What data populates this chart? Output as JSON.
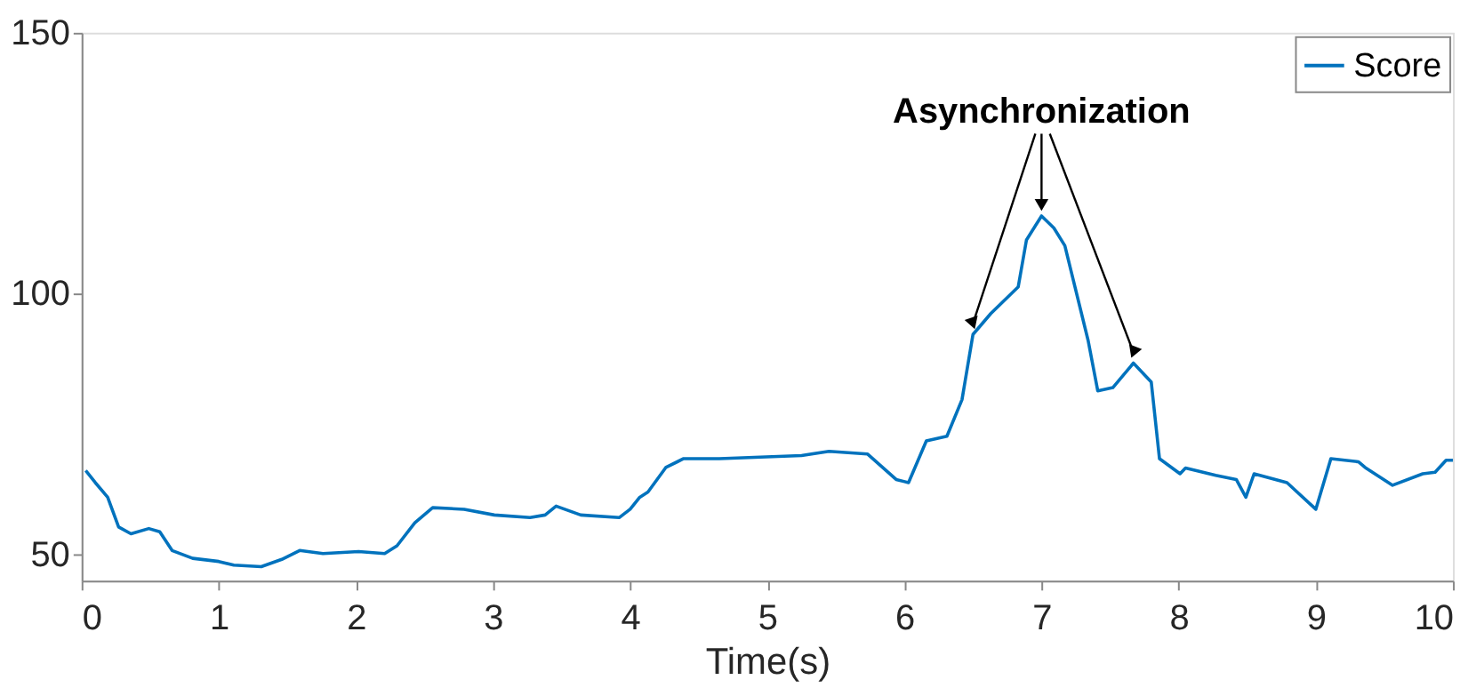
{
  "chart_data": {
    "type": "line",
    "xlabel": "Time(s)",
    "xlim": [
      0,
      10
    ],
    "xticks": [
      0,
      1,
      2,
      3,
      4,
      5,
      6,
      7,
      8,
      9,
      10
    ],
    "ylim": [
      45,
      150
    ],
    "yticks": [
      50,
      100,
      150
    ],
    "grid": false,
    "legend": "top right",
    "marker": "none",
    "line_style": "solid",
    "annotations": [
      {
        "text": "Asynchronization",
        "x": 7.0,
        "y": 114.9
      }
    ],
    "series": [
      {
        "name": "Score",
        "color": "#0072bd",
        "x": [
          0.03,
          0.1,
          0.19,
          0.27,
          0.36,
          0.49,
          0.57,
          0.66,
          0.81,
          1.0,
          1.11,
          1.31,
          1.46,
          1.59,
          1.76,
          2.02,
          2.21,
          2.3,
          2.43,
          2.56,
          2.79,
          3.01,
          3.27,
          3.38,
          3.46,
          3.64,
          3.92,
          4.0,
          4.07,
          4.13,
          4.26,
          4.39,
          4.65,
          5.25,
          5.45,
          5.73,
          5.94,
          6.03,
          6.16,
          6.31,
          6.42,
          6.5,
          6.63,
          6.83,
          6.89,
          7.0,
          7.09,
          7.17,
          7.34,
          7.41,
          7.52,
          7.67,
          7.8,
          7.86,
          8.01,
          8.05,
          8.27,
          8.42,
          8.49,
          8.55,
          8.79,
          9.0,
          9.11,
          9.31,
          9.36,
          9.56,
          9.78,
          9.87,
          9.95,
          10.0
        ],
        "values": [
          66.1,
          63.8,
          61,
          55.3,
          54,
          55,
          54.4,
          50.8,
          49.3,
          48.7,
          48,
          47.7,
          49.1,
          50.8,
          50.2,
          50.6,
          50.2,
          51.7,
          56.1,
          59,
          58.7,
          57.6,
          57.1,
          57.6,
          59.3,
          57.6,
          57.1,
          58.7,
          61,
          62,
          66.7,
          68.4,
          68.4,
          69,
          69.8,
          69.3,
          64.4,
          63.8,
          71.8,
          72.7,
          79.7,
          92.2,
          96.2,
          101.3,
          110.3,
          114.9,
          112.6,
          109.2,
          91,
          81.4,
          82,
          86.7,
          83.1,
          68.4,
          65.5,
          66.6,
          65.2,
          64.4,
          61,
          65.5,
          63.8,
          58.7,
          68.4,
          67.8,
          66.7,
          63.3,
          65.5,
          65.8,
          68.1,
          68.1
        ]
      }
    ]
  }
}
